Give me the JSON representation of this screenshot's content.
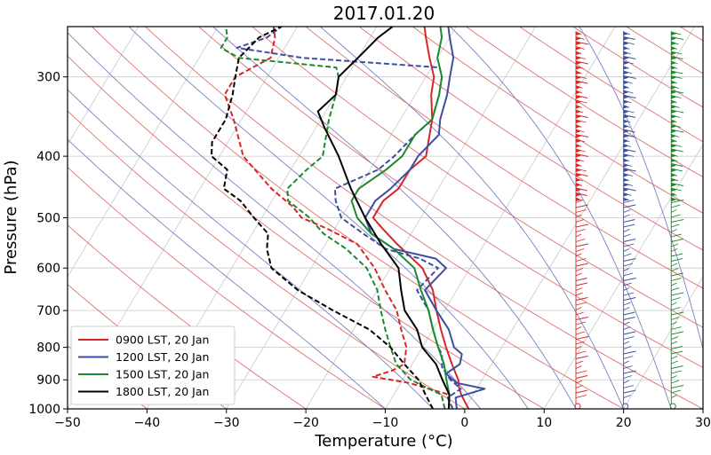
{
  "chart_data": {
    "type": "skew-t",
    "title": "2017.01.20",
    "xlabel": "Temperature (°C)",
    "ylabel": "Pressure (hPa)",
    "xlim": [
      -50,
      30
    ],
    "ylim": [
      1000,
      250
    ],
    "y_scale": "log",
    "x_ticks": [
      -50,
      -40,
      -30,
      -20,
      -10,
      0,
      10,
      20,
      30
    ],
    "x_tick_labels": [
      "−50",
      "−40",
      "−30",
      "−20",
      "−10",
      "0",
      "10",
      "20",
      "30"
    ],
    "y_ticks": [
      1000,
      900,
      800,
      700,
      600,
      500,
      400,
      300
    ],
    "y_tick_labels": [
      "1000",
      "900",
      "800",
      "700",
      "600",
      "500",
      "400",
      "300"
    ],
    "grid": true,
    "legend_position": "lower-left",
    "legend": [
      {
        "label": "0900 LST, 20 Jan",
        "color": "#d62728"
      },
      {
        "label": "1200 LST, 20 Jan",
        "color": "#3b4fa3"
      },
      {
        "label": "1500 LST, 20 Jan",
        "color": "#1a8a2e"
      },
      {
        "label": "1800 LST, 20 Jan",
        "color": "#000000"
      }
    ],
    "series": [
      {
        "color": "#d62728",
        "temperature": [
          [
            1000,
            0.5
          ],
          [
            950,
            -1.5
          ],
          [
            920,
            -2.5
          ],
          [
            900,
            -3
          ],
          [
            850,
            -5
          ],
          [
            800,
            -7
          ],
          [
            750,
            -9
          ],
          [
            700,
            -11
          ],
          [
            650,
            -13
          ],
          [
            600,
            -16
          ],
          [
            550,
            -21
          ],
          [
            520,
            -24
          ],
          [
            500,
            -26
          ],
          [
            470,
            -26
          ],
          [
            450,
            -25
          ],
          [
            420,
            -25
          ],
          [
            400,
            -24
          ],
          [
            350,
            -26
          ],
          [
            320,
            -28
          ],
          [
            300,
            -29
          ],
          [
            280,
            -31
          ],
          [
            260,
            -33
          ],
          [
            250,
            -34
          ]
        ],
        "dewpoint": [
          [
            1000,
            -2
          ],
          [
            950,
            -3
          ],
          [
            930,
            -6
          ],
          [
            910,
            -9
          ],
          [
            890,
            -14
          ],
          [
            870,
            -12
          ],
          [
            850,
            -11
          ],
          [
            800,
            -12
          ],
          [
            750,
            -14
          ],
          [
            700,
            -16
          ],
          [
            650,
            -19
          ],
          [
            600,
            -22
          ],
          [
            550,
            -26
          ],
          [
            520,
            -31
          ],
          [
            500,
            -35
          ],
          [
            480,
            -37
          ],
          [
            450,
            -41
          ],
          [
            400,
            -47
          ],
          [
            350,
            -51
          ],
          [
            320,
            -54
          ],
          [
            300,
            -54
          ],
          [
            280,
            -51
          ],
          [
            260,
            -52
          ],
          [
            250,
            -53
          ]
        ],
        "barb_x": 14
      },
      {
        "color": "#3b4fa3",
        "temperature": [
          [
            1000,
            -1
          ],
          [
            960,
            -2
          ],
          [
            930,
            1
          ],
          [
            910,
            -3
          ],
          [
            880,
            -5
          ],
          [
            850,
            -4
          ],
          [
            820,
            -4.5
          ],
          [
            800,
            -6
          ],
          [
            750,
            -8
          ],
          [
            700,
            -11
          ],
          [
            650,
            -14
          ],
          [
            600,
            -13
          ],
          [
            580,
            -15
          ],
          [
            560,
            -21
          ],
          [
            530,
            -25
          ],
          [
            500,
            -27
          ],
          [
            470,
            -27
          ],
          [
            450,
            -26
          ],
          [
            420,
            -25
          ],
          [
            400,
            -25
          ],
          [
            370,
            -24
          ],
          [
            350,
            -25
          ],
          [
            320,
            -26
          ],
          [
            300,
            -27
          ],
          [
            280,
            -28
          ],
          [
            260,
            -30
          ],
          [
            250,
            -31
          ]
        ],
        "dewpoint": [
          [
            1000,
            -1.5
          ],
          [
            960,
            -3
          ],
          [
            930,
            -2
          ],
          [
            900,
            -4
          ],
          [
            860,
            -6
          ],
          [
            820,
            -7
          ],
          [
            800,
            -8
          ],
          [
            750,
            -10
          ],
          [
            700,
            -12
          ],
          [
            650,
            -15
          ],
          [
            600,
            -14
          ],
          [
            580,
            -17
          ],
          [
            560,
            -22
          ],
          [
            530,
            -26
          ],
          [
            500,
            -30
          ],
          [
            470,
            -32
          ],
          [
            450,
            -33
          ],
          [
            420,
            -29
          ],
          [
            400,
            -28
          ],
          [
            370,
            -27
          ],
          [
            350,
            -26
          ],
          [
            320,
            -27
          ],
          [
            300,
            -28
          ],
          [
            290,
            -29
          ],
          [
            280,
            -47
          ],
          [
            270,
            -56
          ],
          [
            260,
            -53
          ],
          [
            250,
            -52
          ]
        ],
        "barb_x": 20
      },
      {
        "color": "#1a8a2e",
        "temperature": [
          [
            1000,
            -2
          ],
          [
            950,
            -3
          ],
          [
            900,
            -4.5
          ],
          [
            850,
            -6
          ],
          [
            800,
            -8
          ],
          [
            750,
            -10
          ],
          [
            700,
            -12
          ],
          [
            650,
            -14.5
          ],
          [
            600,
            -17
          ],
          [
            560,
            -21
          ],
          [
            530,
            -25
          ],
          [
            500,
            -28
          ],
          [
            470,
            -30
          ],
          [
            450,
            -30
          ],
          [
            420,
            -28
          ],
          [
            400,
            -27
          ],
          [
            370,
            -27
          ],
          [
            350,
            -26
          ],
          [
            320,
            -27
          ],
          [
            300,
            -28
          ],
          [
            280,
            -30
          ],
          [
            260,
            -31
          ],
          [
            250,
            -32
          ]
        ],
        "dewpoint": [
          [
            1000,
            -2.5
          ],
          [
            950,
            -4
          ],
          [
            900,
            -9
          ],
          [
            850,
            -12
          ],
          [
            800,
            -14
          ],
          [
            750,
            -16
          ],
          [
            700,
            -18
          ],
          [
            650,
            -20
          ],
          [
            600,
            -23
          ],
          [
            560,
            -27
          ],
          [
            530,
            -31
          ],
          [
            500,
            -34
          ],
          [
            470,
            -38
          ],
          [
            450,
            -39
          ],
          [
            420,
            -38
          ],
          [
            400,
            -37
          ],
          [
            350,
            -39
          ],
          [
            320,
            -40
          ],
          [
            300,
            -41
          ],
          [
            290,
            -42
          ],
          [
            280,
            -55
          ],
          [
            270,
            -58
          ],
          [
            260,
            -58
          ],
          [
            250,
            -59
          ]
        ],
        "barb_x": 26
      },
      {
        "color": "#000000",
        "temperature": [
          [
            1000,
            -2
          ],
          [
            950,
            -3
          ],
          [
            900,
            -5
          ],
          [
            850,
            -7
          ],
          [
            800,
            -10
          ],
          [
            750,
            -12
          ],
          [
            700,
            -15
          ],
          [
            650,
            -17
          ],
          [
            600,
            -19
          ],
          [
            550,
            -23
          ],
          [
            500,
            -27
          ],
          [
            450,
            -31
          ],
          [
            400,
            -35
          ],
          [
            360,
            -39
          ],
          [
            340,
            -41
          ],
          [
            320,
            -40
          ],
          [
            300,
            -41
          ],
          [
            280,
            -40
          ],
          [
            260,
            -39
          ],
          [
            250,
            -38
          ]
        ],
        "dewpoint": [
          [
            1000,
            -4
          ],
          [
            950,
            -6
          ],
          [
            900,
            -8
          ],
          [
            850,
            -11
          ],
          [
            800,
            -14
          ],
          [
            750,
            -18
          ],
          [
            700,
            -24
          ],
          [
            650,
            -30
          ],
          [
            600,
            -35
          ],
          [
            560,
            -37
          ],
          [
            530,
            -38
          ],
          [
            500,
            -41
          ],
          [
            470,
            -44
          ],
          [
            450,
            -47
          ],
          [
            420,
            -48
          ],
          [
            400,
            -51
          ],
          [
            380,
            -52
          ],
          [
            350,
            -52
          ],
          [
            320,
            -53
          ],
          [
            300,
            -54
          ],
          [
            280,
            -55
          ],
          [
            260,
            -54
          ],
          [
            250,
            -52
          ]
        ],
        "barb_x": 31.5
      }
    ]
  }
}
